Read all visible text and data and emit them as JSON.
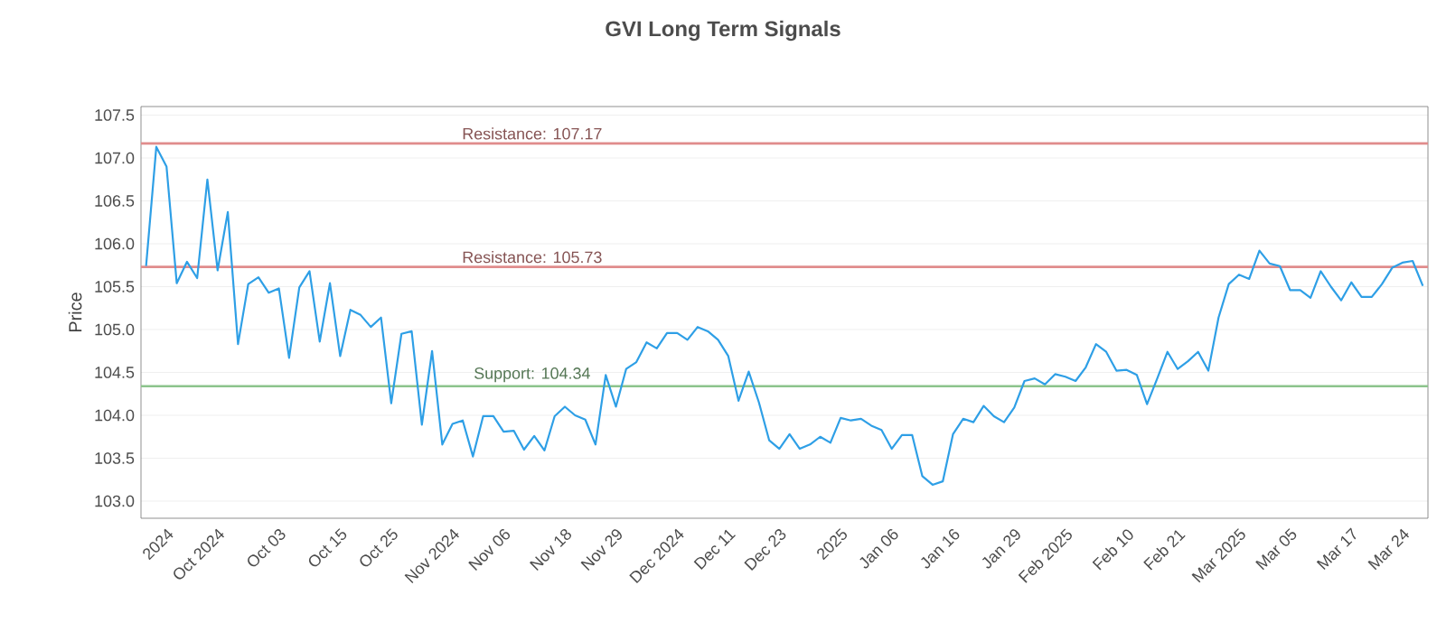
{
  "chart_data": {
    "type": "line",
    "title": "GVI Long Term Signals",
    "ylabel": "Price",
    "categories": [
      null,
      null,
      "2024",
      null,
      null,
      null,
      null,
      "Oct 2024",
      null,
      null,
      null,
      null,
      null,
      "Oct 03",
      null,
      null,
      null,
      null,
      null,
      "Oct 15",
      null,
      null,
      null,
      null,
      "Oct 25",
      null,
      null,
      null,
      null,
      null,
      "Nov 2024",
      null,
      null,
      null,
      null,
      "Nov 06",
      null,
      null,
      null,
      null,
      null,
      "Nov 18",
      null,
      null,
      null,
      null,
      "Nov 29",
      null,
      null,
      null,
      null,
      null,
      "Dec 2024",
      null,
      null,
      null,
      null,
      "Dec 11",
      null,
      null,
      null,
      null,
      "Dec 23",
      null,
      null,
      null,
      null,
      null,
      "2025",
      null,
      null,
      null,
      null,
      "Jan 06",
      null,
      null,
      null,
      null,
      null,
      "Jan 16",
      null,
      null,
      null,
      null,
      null,
      "Jan 29",
      null,
      null,
      null,
      null,
      "Feb 2025",
      null,
      null,
      null,
      null,
      null,
      "Feb 10",
      null,
      null,
      null,
      null,
      "Feb 21",
      null,
      null,
      null,
      null,
      null,
      "Mar 2025",
      null,
      null,
      null,
      null,
      "Mar 05",
      null,
      null,
      null,
      null,
      null,
      "Mar 17",
      null,
      null,
      null,
      null,
      "Mar 24",
      null,
      null
    ],
    "values": [
      105.74,
      107.13,
      106.9,
      105.54,
      105.79,
      105.6,
      106.75,
      105.69,
      106.37,
      104.83,
      105.53,
      105.61,
      105.43,
      105.48,
      104.67,
      105.49,
      105.68,
      104.86,
      105.54,
      104.69,
      105.23,
      105.17,
      105.03,
      105.14,
      104.14,
      104.95,
      104.98,
      103.89,
      104.75,
      103.66,
      103.9,
      103.94,
      103.52,
      103.99,
      103.99,
      103.81,
      103.82,
      103.6,
      103.76,
      103.59,
      103.99,
      104.1,
      104.0,
      103.95,
      103.66,
      104.47,
      104.1,
      104.54,
      104.62,
      104.85,
      104.78,
      104.96,
      104.96,
      104.88,
      105.03,
      104.98,
      104.88,
      104.69,
      104.17,
      104.51,
      104.15,
      103.71,
      103.61,
      103.78,
      103.61,
      103.66,
      103.75,
      103.68,
      103.97,
      103.94,
      103.96,
      103.88,
      103.83,
      103.61,
      103.77,
      103.77,
      103.29,
      103.19,
      103.23,
      103.78,
      103.96,
      103.92,
      104.11,
      103.99,
      103.92,
      104.09,
      104.4,
      104.43,
      104.36,
      104.48,
      104.45,
      104.4,
      104.56,
      104.83,
      104.74,
      104.52,
      104.53,
      104.47,
      104.13,
      104.43,
      104.74,
      104.54,
      104.63,
      104.74,
      104.52,
      105.14,
      105.53,
      105.64,
      105.59,
      105.92,
      105.77,
      105.74,
      105.46,
      105.46,
      105.37,
      105.68,
      105.5,
      105.34,
      105.55,
      105.38,
      105.38,
      105.53,
      105.72,
      105.78,
      105.8,
      105.51
    ],
    "color": "#2e9fe6",
    "ylim": [
      102.8,
      107.6
    ],
    "yticks": [
      {
        "value": 103,
        "label": "103.0"
      },
      103.5,
      {
        "value": 104,
        "label": "104.0"
      },
      104.5,
      {
        "value": 105,
        "label": "105.0"
      },
      105.5,
      {
        "value": 106,
        "label": "106.0"
      },
      106.5,
      {
        "value": 107,
        "label": "107.0"
      },
      107.5
    ],
    "grid": "y",
    "ref_lines": [
      {
        "axis": "y",
        "value": 107.17,
        "label": "Resistance: 107.17",
        "color": "#e08c8c"
      },
      {
        "axis": "y",
        "value": 105.73,
        "label": "Resistance: 105.73",
        "color": "#e08c8c"
      },
      {
        "axis": "y",
        "value": 104.34,
        "label": "Support: 104.34",
        "color": "#8cc48c"
      }
    ]
  }
}
